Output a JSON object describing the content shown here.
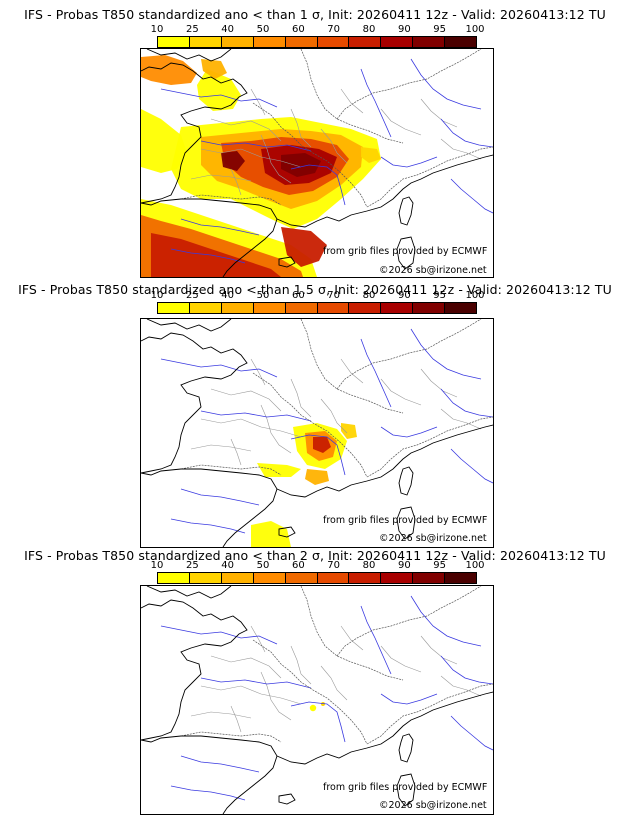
{
  "colors": {
    "bin_colors": [
      "#ffff00",
      "#ffd400",
      "#ffb200",
      "#ff8c00",
      "#f06a00",
      "#e64a00",
      "#c81e00",
      "#a80000",
      "#800000",
      "#4a0000"
    ]
  },
  "legend": {
    "ticks": [
      "10",
      "25",
      "40",
      "50",
      "60",
      "70",
      "80",
      "90",
      "95",
      "100"
    ]
  },
  "panels": [
    {
      "title": "IFS - Probas T850  standardized ano < than 1 σ, Init: 20260411 12z - Valid: 20260413:12 TU",
      "credit": "from grib files provided by ECMWF",
      "copyright": "©2026 sb@irizone.net",
      "threshold_sigma": 1
    },
    {
      "title": "IFS - Probas T850  standardized ano < than 1.5 σ, Init: 20260411 12z - Valid: 20260413:12 TU",
      "credit": "from grib files provided by ECMWF",
      "copyright": "©2026 sb@irizone.net",
      "threshold_sigma": 1.5
    },
    {
      "title": "IFS - Probas T850  standardized ano < than 2 σ, Init: 20260411 12z - Valid: 20260413:12 TU",
      "credit": "from grib files provided by ECMWF",
      "copyright": "©2026 sb@irizone.net",
      "threshold_sigma": 2
    }
  ]
}
